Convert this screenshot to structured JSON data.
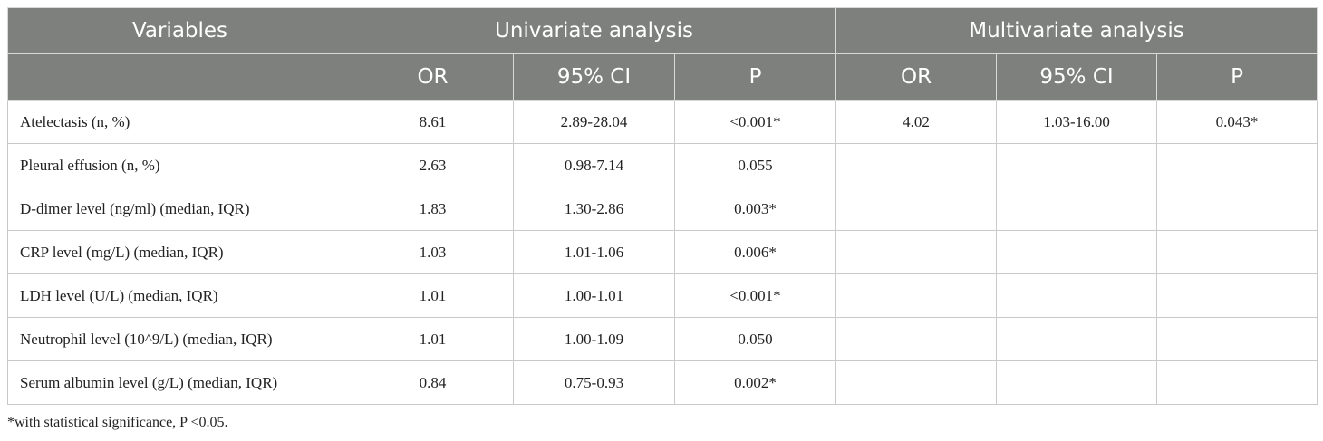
{
  "table": {
    "headers": {
      "variables": "Variables",
      "univariate": "Univariate analysis",
      "multivariate": "Multivariate analysis",
      "sub": [
        "OR",
        "95% CI",
        "P",
        "OR",
        "95% CI",
        "P"
      ]
    },
    "rows": [
      {
        "variable": "Atelectasis (n, %)",
        "uni_or": "8.61",
        "uni_ci": "2.89-28.04",
        "uni_p": "<0.001*",
        "multi_or": "4.02",
        "multi_ci": "1.03-16.00",
        "multi_p": "0.043*"
      },
      {
        "variable": "Pleural effusion (n, %)",
        "uni_or": "2.63",
        "uni_ci": "0.98-7.14",
        "uni_p": "0.055",
        "multi_or": "",
        "multi_ci": "",
        "multi_p": ""
      },
      {
        "variable": "D-dimer level (ng/ml) (median, IQR)",
        "uni_or": "1.83",
        "uni_ci": "1.30-2.86",
        "uni_p": "0.003*",
        "multi_or": "",
        "multi_ci": "",
        "multi_p": ""
      },
      {
        "variable": "CRP level (mg/L) (median, IQR)",
        "uni_or": "1.03",
        "uni_ci": "1.01-1.06",
        "uni_p": "0.006*",
        "multi_or": "",
        "multi_ci": "",
        "multi_p": ""
      },
      {
        "variable": "LDH level (U/L) (median, IQR)",
        "uni_or": "1.01",
        "uni_ci": "1.00-1.01",
        "uni_p": "<0.001*",
        "multi_or": "",
        "multi_ci": "",
        "multi_p": ""
      },
      {
        "variable": "Neutrophil level (10^9/L) (median, IQR)",
        "uni_or": "1.01",
        "uni_ci": "1.00-1.09",
        "uni_p": "0.050",
        "multi_or": "",
        "multi_ci": "",
        "multi_p": ""
      },
      {
        "variable": "Serum albumin level (g/L) (median, IQR)",
        "uni_or": "0.84",
        "uni_ci": "0.75-0.93",
        "uni_p": "0.002*",
        "multi_or": "",
        "multi_ci": "",
        "multi_p": ""
      }
    ]
  },
  "footnote": "*with statistical significance, P <0.05.",
  "colors": {
    "header_bg": "#7e807e",
    "header_text": "#ffffff",
    "border": "#c9c9c9"
  }
}
